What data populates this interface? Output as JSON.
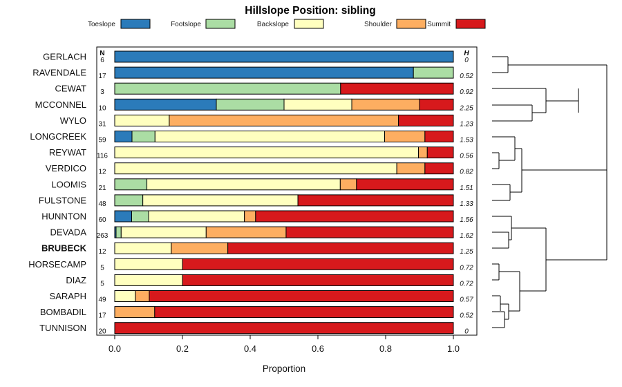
{
  "chart_data": {
    "type": "bar",
    "orientation": "horizontal-stacked",
    "title": "Hillslope Position: sibling",
    "xlabel": "Proportion",
    "ylabel": "",
    "xlim": [
      0,
      1
    ],
    "x_ticks": [
      "0.0",
      "0.2",
      "0.4",
      "0.6",
      "0.8",
      "1.0"
    ],
    "n_header": "N",
    "h_header": "H",
    "legend": [
      {
        "name": "Toeslope",
        "color": "#2b7bba"
      },
      {
        "name": "Footslope",
        "color": "#abdda4"
      },
      {
        "name": "Backslope",
        "color": "#ffffbf"
      },
      {
        "name": "Shoulder",
        "color": "#fdae61"
      },
      {
        "name": "Summit",
        "color": "#d7191c"
      }
    ],
    "rows": [
      {
        "name": "GERLACH",
        "n": "6",
        "h": "0",
        "bold": false,
        "values": [
          1.0,
          0,
          0,
          0,
          0
        ]
      },
      {
        "name": "RAVENDALE",
        "n": "17",
        "h": "0.52",
        "bold": false,
        "values": [
          0.882,
          0.118,
          0,
          0,
          0
        ]
      },
      {
        "name": "CEWAT",
        "n": "3",
        "h": "0.92",
        "bold": false,
        "values": [
          0,
          0.667,
          0,
          0,
          0.333
        ]
      },
      {
        "name": "MCCONNEL",
        "n": "10",
        "h": "2.25",
        "bold": false,
        "values": [
          0.3,
          0.2,
          0.2,
          0.2,
          0.1
        ]
      },
      {
        "name": "WYLO",
        "n": "31",
        "h": "1.23",
        "bold": false,
        "values": [
          0,
          0,
          0.161,
          0.677,
          0.162
        ]
      },
      {
        "name": "LONGCREEK",
        "n": "59",
        "h": "1.53",
        "bold": false,
        "values": [
          0.051,
          0.068,
          0.678,
          0.119,
          0.084
        ]
      },
      {
        "name": "REYWAT",
        "n": "116",
        "h": "0.56",
        "bold": false,
        "values": [
          0,
          0,
          0.897,
          0.026,
          0.077
        ]
      },
      {
        "name": "VERDICO",
        "n": "12",
        "h": "0.82",
        "bold": false,
        "values": [
          0,
          0,
          0.833,
          0.083,
          0.084
        ]
      },
      {
        "name": "LOOMIS",
        "n": "21",
        "h": "1.51",
        "bold": false,
        "values": [
          0,
          0.095,
          0.571,
          0.048,
          0.286
        ]
      },
      {
        "name": "FULSTONE",
        "n": "48",
        "h": "1.33",
        "bold": false,
        "values": [
          0,
          0.083,
          0.458,
          0,
          0.459
        ]
      },
      {
        "name": "HUNNTON",
        "n": "60",
        "h": "1.56",
        "bold": false,
        "values": [
          0.05,
          0.05,
          0.283,
          0.033,
          0.584
        ]
      },
      {
        "name": "DEVADA",
        "n": "263",
        "h": "1.62",
        "bold": false,
        "values": [
          0.004,
          0.015,
          0.251,
          0.236,
          0.494
        ]
      },
      {
        "name": "BRUBECK",
        "n": "12",
        "h": "1.25",
        "bold": true,
        "values": [
          0,
          0,
          0.167,
          0.167,
          0.666
        ]
      },
      {
        "name": "HORSECAMP",
        "n": "5",
        "h": "0.72",
        "bold": false,
        "values": [
          0,
          0,
          0.2,
          0,
          0.8
        ]
      },
      {
        "name": "DIAZ",
        "n": "5",
        "h": "0.72",
        "bold": false,
        "values": [
          0,
          0,
          0.2,
          0,
          0.8
        ]
      },
      {
        "name": "SARAPH",
        "n": "49",
        "h": "0.57",
        "bold": false,
        "values": [
          0,
          0,
          0.061,
          0.041,
          0.898
        ]
      },
      {
        "name": "BOMBADIL",
        "n": "17",
        "h": "0.52",
        "bold": false,
        "values": [
          0,
          0,
          0,
          0.118,
          0.882
        ]
      },
      {
        "name": "TUNNISON",
        "n": "20",
        "h": "0",
        "bold": false,
        "values": [
          0,
          0,
          0,
          0,
          1.0
        ]
      }
    ]
  }
}
